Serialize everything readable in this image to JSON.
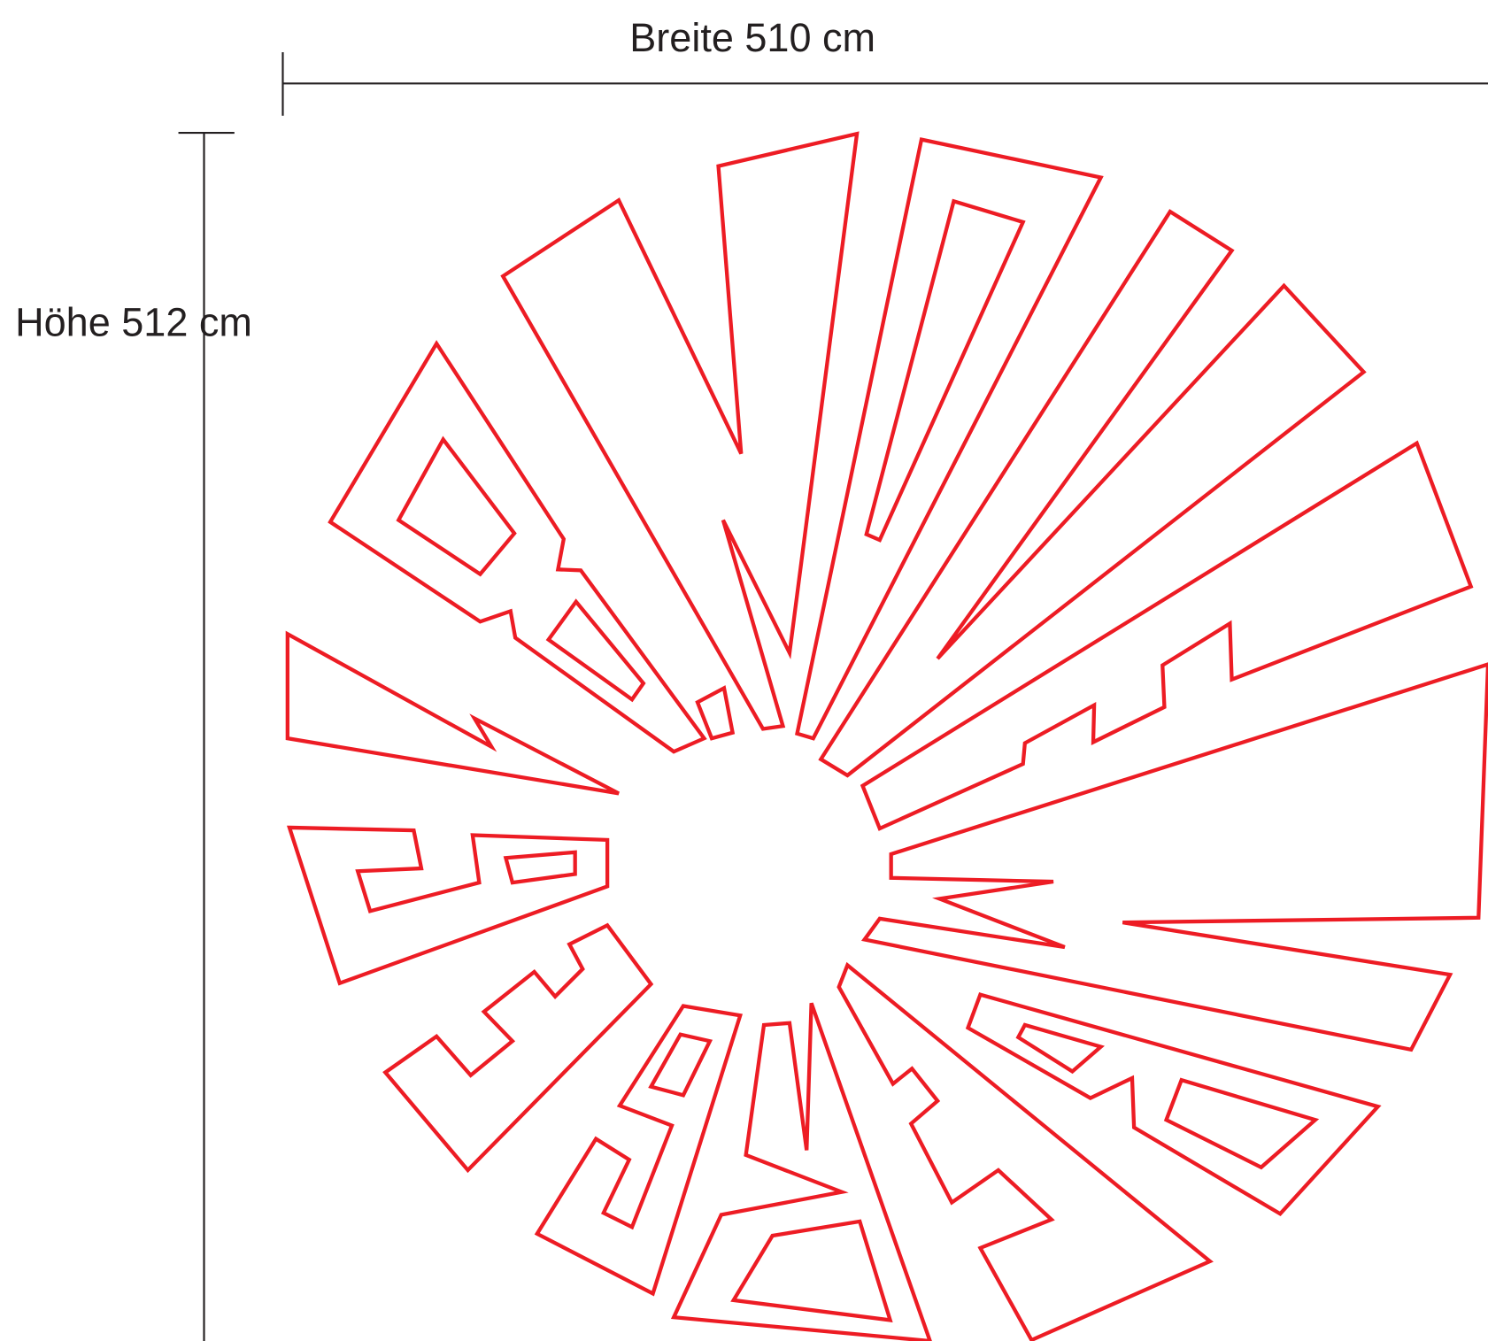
{
  "dimensions": {
    "width_label": "Breite 510 cm",
    "height_label": "Höhe 512 cm"
  }
}
